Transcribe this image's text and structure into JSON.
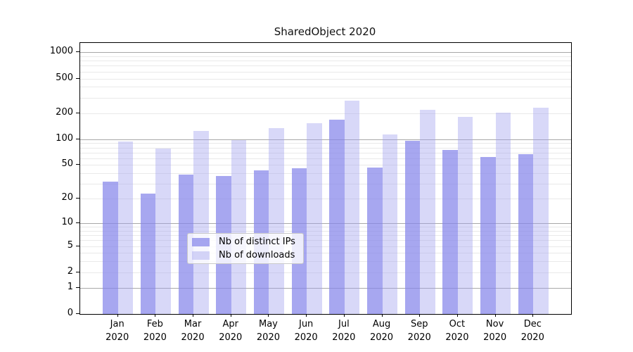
{
  "chart_data": {
    "type": "bar",
    "title": "SharedObject 2020",
    "categories": [
      "Jan",
      "Feb",
      "Mar",
      "Apr",
      "May",
      "Jun",
      "Jul",
      "Aug",
      "Sep",
      "Oct",
      "Nov",
      "Dec"
    ],
    "category_year": "2020",
    "series": [
      {
        "name": "Nb of distinct IPs",
        "color": "rgba(133,133,234,0.72)",
        "values": [
          32,
          23,
          39,
          37,
          43,
          46,
          168,
          47,
          95,
          75,
          62,
          67
        ]
      },
      {
        "name": "Nb of downloads",
        "color": "rgba(158,158,238,0.40)",
        "values": [
          94,
          78,
          125,
          97,
          134,
          152,
          278,
          113,
          220,
          182,
          202,
          230
        ]
      }
    ],
    "yscale": "log1p",
    "yticks": [
      0,
      1,
      2,
      5,
      10,
      20,
      50,
      100,
      200,
      500,
      1000
    ],
    "ylim": [
      0,
      1280
    ],
    "grid": {
      "major_ticks": [
        1,
        10,
        100,
        1000
      ],
      "major_color": "#a8a8a8",
      "minor_color": "#e9e9e9"
    },
    "legend_position": "lower center",
    "axis_color": "#000000",
    "background_color": "#ffffff"
  }
}
